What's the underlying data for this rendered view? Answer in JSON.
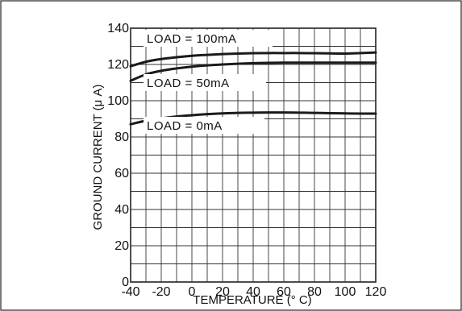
{
  "chart_data": {
    "type": "line",
    "xlabel": "TEMPERATURE (° C)",
    "ylabel": "GROUND CURRENT (μ A)",
    "xlim": [
      -40,
      120
    ],
    "ylim": [
      0,
      140
    ],
    "x_ticks": [
      "-40",
      "-20",
      "0",
      "20",
      "40",
      "60",
      "80",
      "100",
      "120"
    ],
    "y_ticks": [
      "0",
      "20",
      "40",
      "60",
      "80",
      "100",
      "120",
      "140"
    ],
    "x_tick_values": [
      -40,
      -20,
      0,
      20,
      40,
      60,
      80,
      100,
      120
    ],
    "y_tick_values": [
      0,
      20,
      40,
      60,
      80,
      100,
      120,
      140
    ],
    "grid": true,
    "grid_minor_x_step": 10,
    "grid_minor_y_step": 10,
    "line_color": "#1a1a1a",
    "series": [
      {
        "name": "LOAD = 100mA",
        "x": [
          -40,
          -30,
          -20,
          -10,
          0,
          10,
          20,
          30,
          40,
          50,
          60,
          70,
          80,
          90,
          100,
          110,
          120
        ],
        "y": [
          119,
          121.5,
          123,
          124,
          124.8,
          125.3,
          125.7,
          126,
          126.2,
          126.3,
          126.3,
          126.3,
          126.2,
          126.1,
          126,
          126.3,
          126.6
        ]
      },
      {
        "name": "LOAD = 50mA",
        "x": [
          -40,
          -30,
          -20,
          -10,
          0,
          10,
          20,
          30,
          40,
          50,
          60,
          70,
          80,
          90,
          100,
          110,
          120
        ],
        "y": [
          111,
          114.5,
          116.5,
          117.8,
          118.8,
          119.5,
          120,
          120.4,
          120.7,
          120.9,
          121,
          121,
          121,
          121,
          121,
          121,
          121
        ]
      },
      {
        "name": "LOAD = 0mA",
        "x": [
          -40,
          -30,
          -20,
          -10,
          0,
          10,
          20,
          30,
          40,
          50,
          60,
          70,
          80,
          90,
          100,
          110,
          120
        ],
        "y": [
          87,
          89,
          90.3,
          91.3,
          92,
          92.6,
          93,
          93.3,
          93.4,
          93.5,
          93.5,
          93.4,
          93.3,
          93.1,
          93,
          92.9,
          92.9
        ]
      }
    ]
  }
}
